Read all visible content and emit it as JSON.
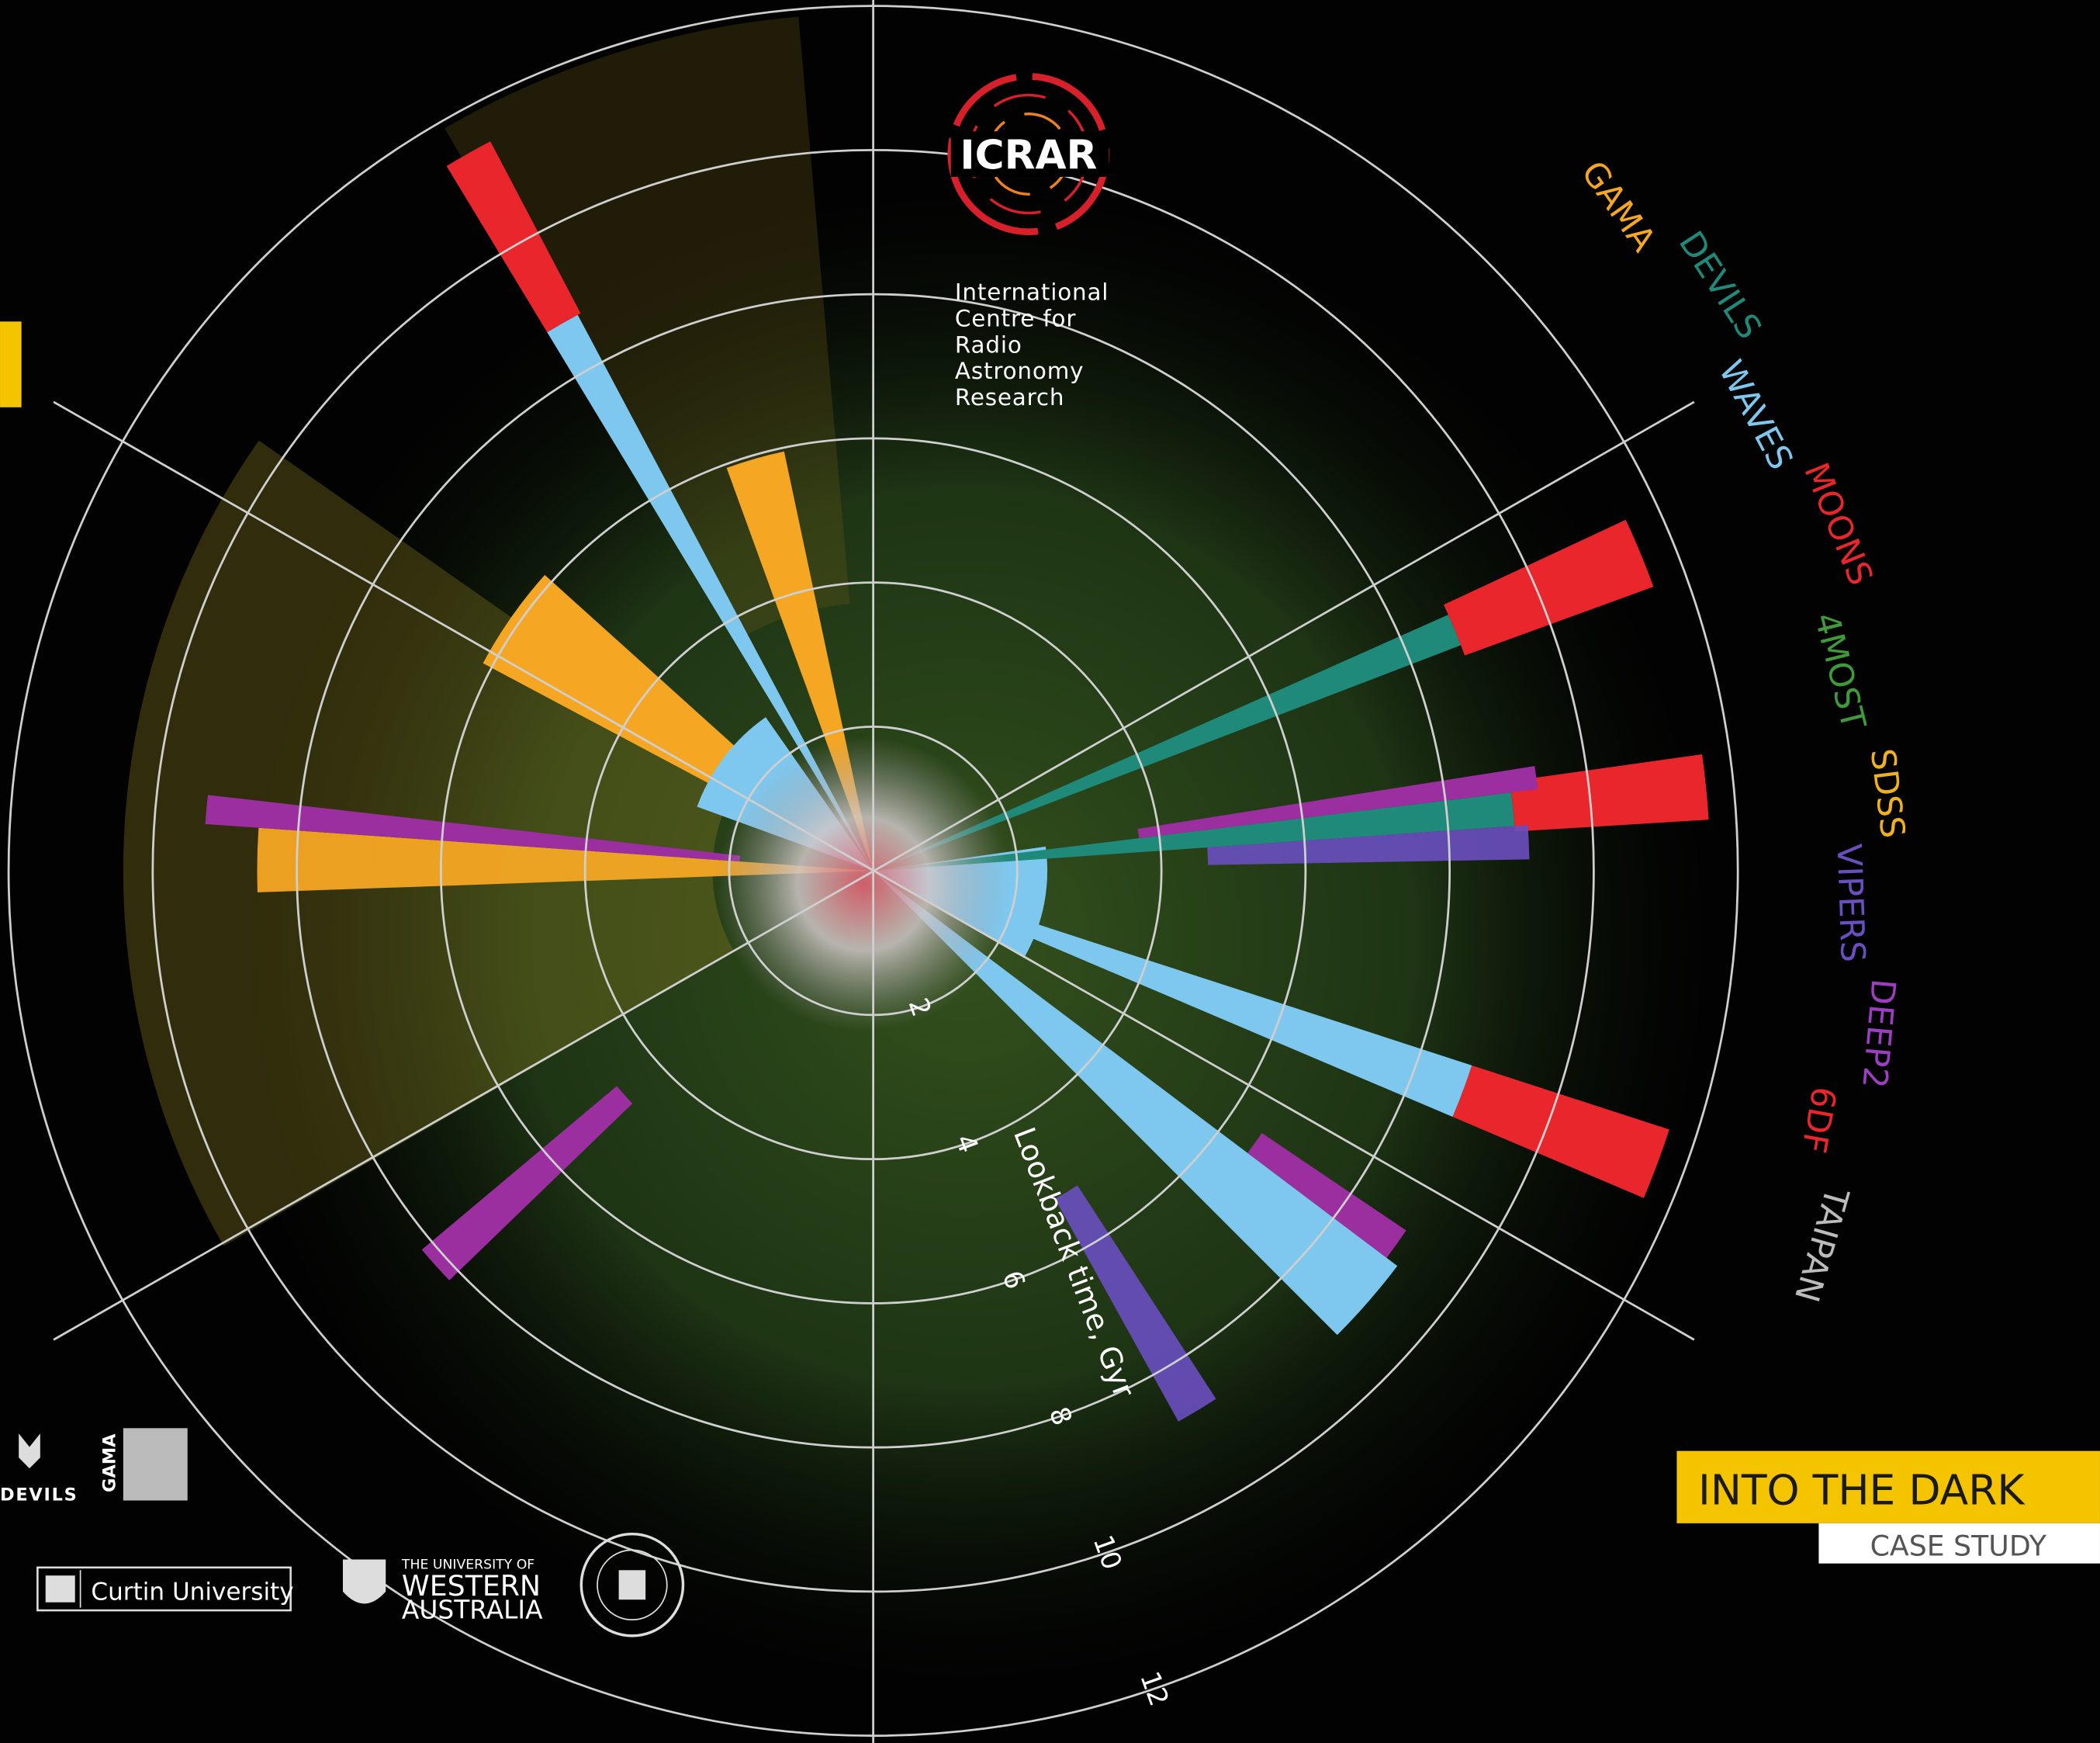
{
  "logo": {
    "name": "ICRAR",
    "lines": [
      "International",
      "Centre for",
      "Radio",
      "Astronomy",
      "Research"
    ]
  },
  "surveys": [
    {
      "name": "GAMA",
      "color": "#f5a623"
    },
    {
      "name": "DEVILS",
      "color": "#1f8a7a"
    },
    {
      "name": "WAVES",
      "color": "#7ec8f0"
    },
    {
      "name": "MOONS",
      "color": "#e8262b"
    },
    {
      "name": "4MOST",
      "color": "#3f9a3a"
    },
    {
      "name": "SDSS",
      "color": "#f0b020"
    },
    {
      "name": "VIPERS",
      "color": "#6a4fc0"
    },
    {
      "name": "DEEP2",
      "color": "#9b3fc0"
    },
    {
      "name": "6DF",
      "color": "#e8262b"
    },
    {
      "name": "TAIPAN",
      "color": "#bbbbbb"
    }
  ],
  "axis": {
    "label": "Lookback time, Gyr",
    "ticks": [
      2,
      4,
      6,
      8,
      10,
      12
    ]
  },
  "title": "INTO THE DARK",
  "subtitle": "CASE STUDY",
  "partners": {
    "devils": "DEVILS",
    "gama": "GAMA",
    "curtin": "Curtin University",
    "uwa": [
      "THE UNIVERSITY OF",
      "WESTERN",
      "AUSTRALIA"
    ]
  }
}
